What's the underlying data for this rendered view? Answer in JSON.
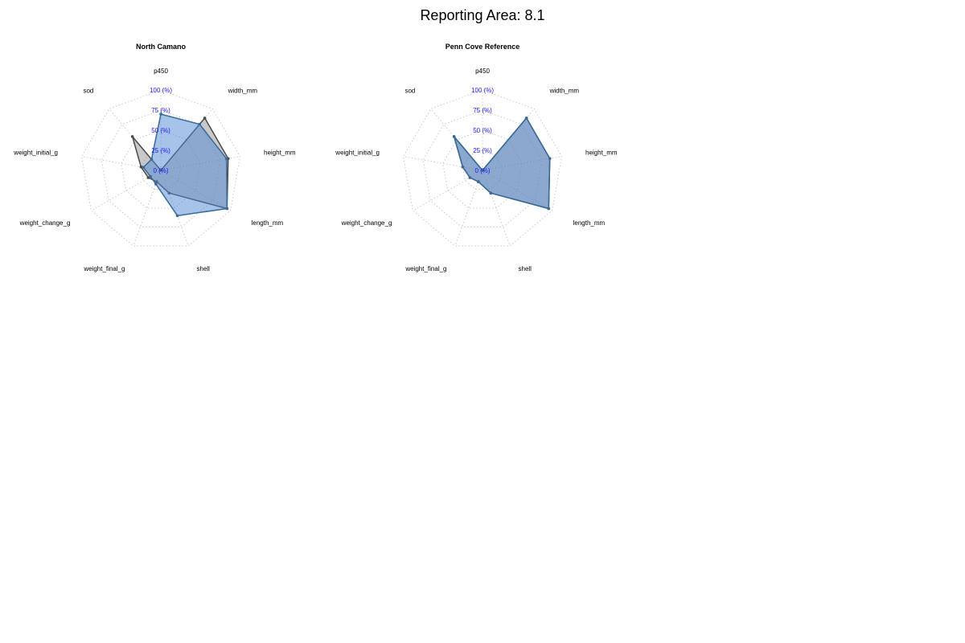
{
  "title": "Reporting Area: 8.1",
  "colors": {
    "reference_fill": "rgba(120,120,120,0.40)",
    "reference_line": "#4a4a4a",
    "site_fill": "rgba(77,135,212,0.50)",
    "site_line": "#3a6a9a",
    "tick_text": "#1a1aff"
  },
  "chart_data": [
    {
      "type": "radar",
      "title": "North Camano",
      "axes": [
        "p450",
        "width_mm",
        "height_mm",
        "length_mm",
        "shell",
        "weight_final_g",
        "weight_change_g",
        "weight_initial_g",
        "sod"
      ],
      "tick_labels": [
        "0 (%)",
        "25 (%)",
        "50 (%)",
        "75 (%)",
        "100 (%)"
      ],
      "range": [
        0,
        100
      ],
      "grid": true,
      "series": [
        {
          "role": "reference",
          "values": [
            0,
            85,
            85,
            95,
            30,
            15,
            18,
            25,
            55
          ]
        },
        {
          "role": "site",
          "values": [
            70,
            75,
            83,
            95,
            60,
            18,
            15,
            22,
            18
          ]
        }
      ]
    },
    {
      "type": "radar",
      "title": "Penn Cove Reference",
      "axes": [
        "p450",
        "width_mm",
        "height_mm",
        "length_mm",
        "shell",
        "weight_final_g",
        "weight_change_g",
        "weight_initial_g",
        "sod"
      ],
      "tick_labels": [
        "0 (%)",
        "25 (%)",
        "50 (%)",
        "75 (%)",
        "100 (%)"
      ],
      "range": [
        0,
        100
      ],
      "grid": true,
      "series": [
        {
          "role": "reference",
          "values": [
            0,
            85,
            85,
            95,
            30,
            15,
            18,
            25,
            55
          ]
        },
        {
          "role": "site",
          "values": [
            0,
            85,
            85,
            95,
            30,
            15,
            18,
            25,
            55
          ]
        }
      ]
    }
  ]
}
